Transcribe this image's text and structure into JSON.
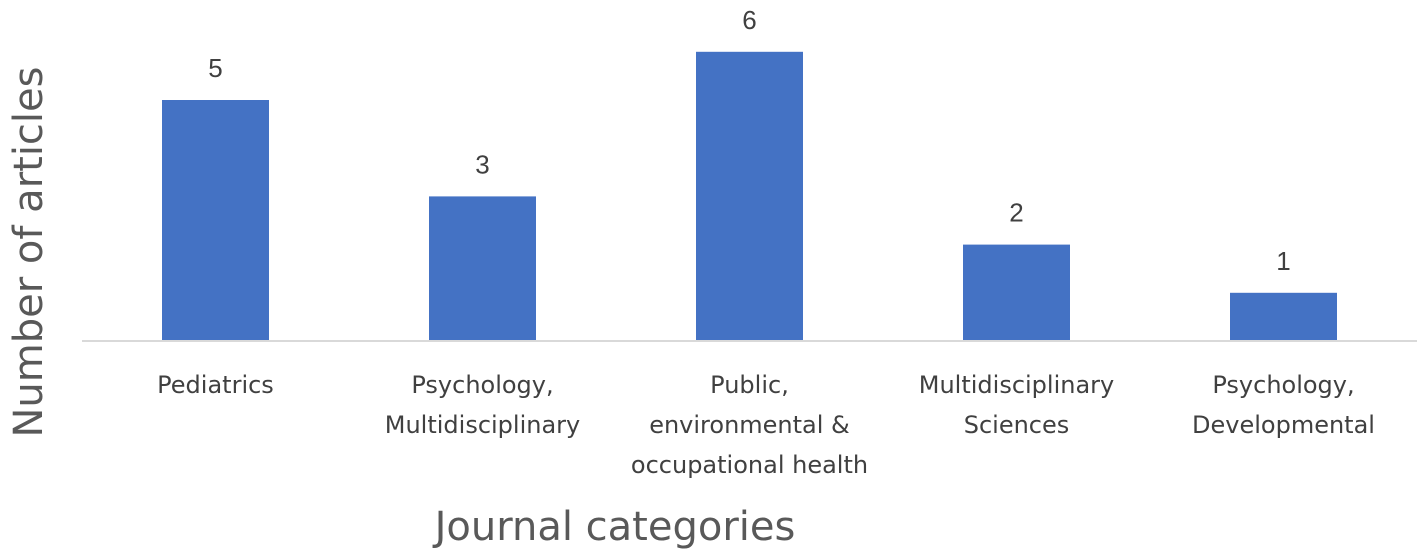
{
  "chart_data": {
    "type": "bar",
    "categories": [
      [
        "Pediatrics"
      ],
      [
        "Psychology,",
        "Multidisciplinary"
      ],
      [
        "Public,",
        "environmental &",
        "occupational health"
      ],
      [
        "Multidisciplinary",
        "Sciences"
      ],
      [
        "Psychology,",
        "Developmental"
      ]
    ],
    "values": [
      5,
      3,
      6,
      2,
      1
    ],
    "xlabel": "Journal categories",
    "ylabel": "Number of articles",
    "ylim": [
      0,
      6
    ],
    "grid": false,
    "legend": "none",
    "bar_color": "#4472C4",
    "data_labels": true
  }
}
